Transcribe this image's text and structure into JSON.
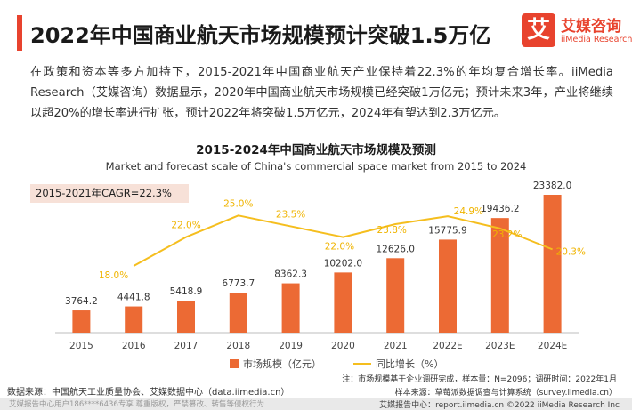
{
  "header": {
    "title": "2022年中国商业航天市场规模预计突破1.5万亿"
  },
  "logo": {
    "glyph": "艾",
    "name_cn": "艾媒咨询",
    "name_en": "iiMedia Research"
  },
  "intro": "在政策和资本等多方加持下，2015-2021年中国商业航天产业保持着22.3%的年均复合增长率。iiMedia Research（艾媒咨询）数据显示，2020年中国商业航天市场规模已经突破1万亿元；预计未来3年，产业将继续以超20%的增长率进行扩张，预计2022年将突破1.5万亿元，2024年有望达到2.3万亿元。",
  "chart_data": {
    "type": "bar",
    "title": "2015-2024年中国商业航天市场规模及预测",
    "subtitle": "Market and forecast scale of China's commercial space market from 2015 to 2024",
    "annotation": "2015-2021年CAGR=22.3%",
    "categories": [
      "2015",
      "2016",
      "2017",
      "2018",
      "2019",
      "2020",
      "2021",
      "2022E",
      "2023E",
      "2024E"
    ],
    "series": [
      {
        "name": "市场规模（亿元）",
        "type": "bar",
        "color": "#ec6a34",
        "values": [
          3764.2,
          4441.8,
          5418.9,
          6773.7,
          8362.3,
          10202.0,
          12626.0,
          15775.9,
          19436.2,
          23382.0
        ],
        "labels": [
          "3764.2",
          "4441.8",
          "5418.9",
          "6773.7",
          "8362.3",
          "10202.0",
          "12626.0",
          "15775.9",
          "19436.2",
          "23382.0"
        ]
      },
      {
        "name": "同比增长（%）",
        "type": "line",
        "color": "#f5be1e",
        "values": [
          null,
          18.0,
          22.0,
          25.0,
          23.5,
          22.0,
          23.8,
          24.9,
          23.2,
          20.3
        ],
        "labels": [
          "",
          "18.0%",
          "22.0%",
          "25.0%",
          "23.5%",
          "22.0%",
          "23.8%",
          "24.9%",
          "23.2%",
          "20.3%"
        ]
      }
    ],
    "legend_position": "bottom",
    "grid": false
  },
  "notes": {
    "note1": "注：市场规模基于企业调研完成，样本量：N=2096；调研时间：2022年1月",
    "note2": "样本来源：草莓派数据调查与计算系统（survey.iimedia.cn）",
    "source": "数据来源：中国航天工业质量协会、艾媒数据中心（data.iimedia.cn）"
  },
  "footer": {
    "left": "艾媒报告中心用户186****6436专享 尊重版权，严禁篡改、转售等侵权行为",
    "right": "艾媒报告中心：report.iimedia.cn ©2022 iiMedia Research Inc"
  }
}
